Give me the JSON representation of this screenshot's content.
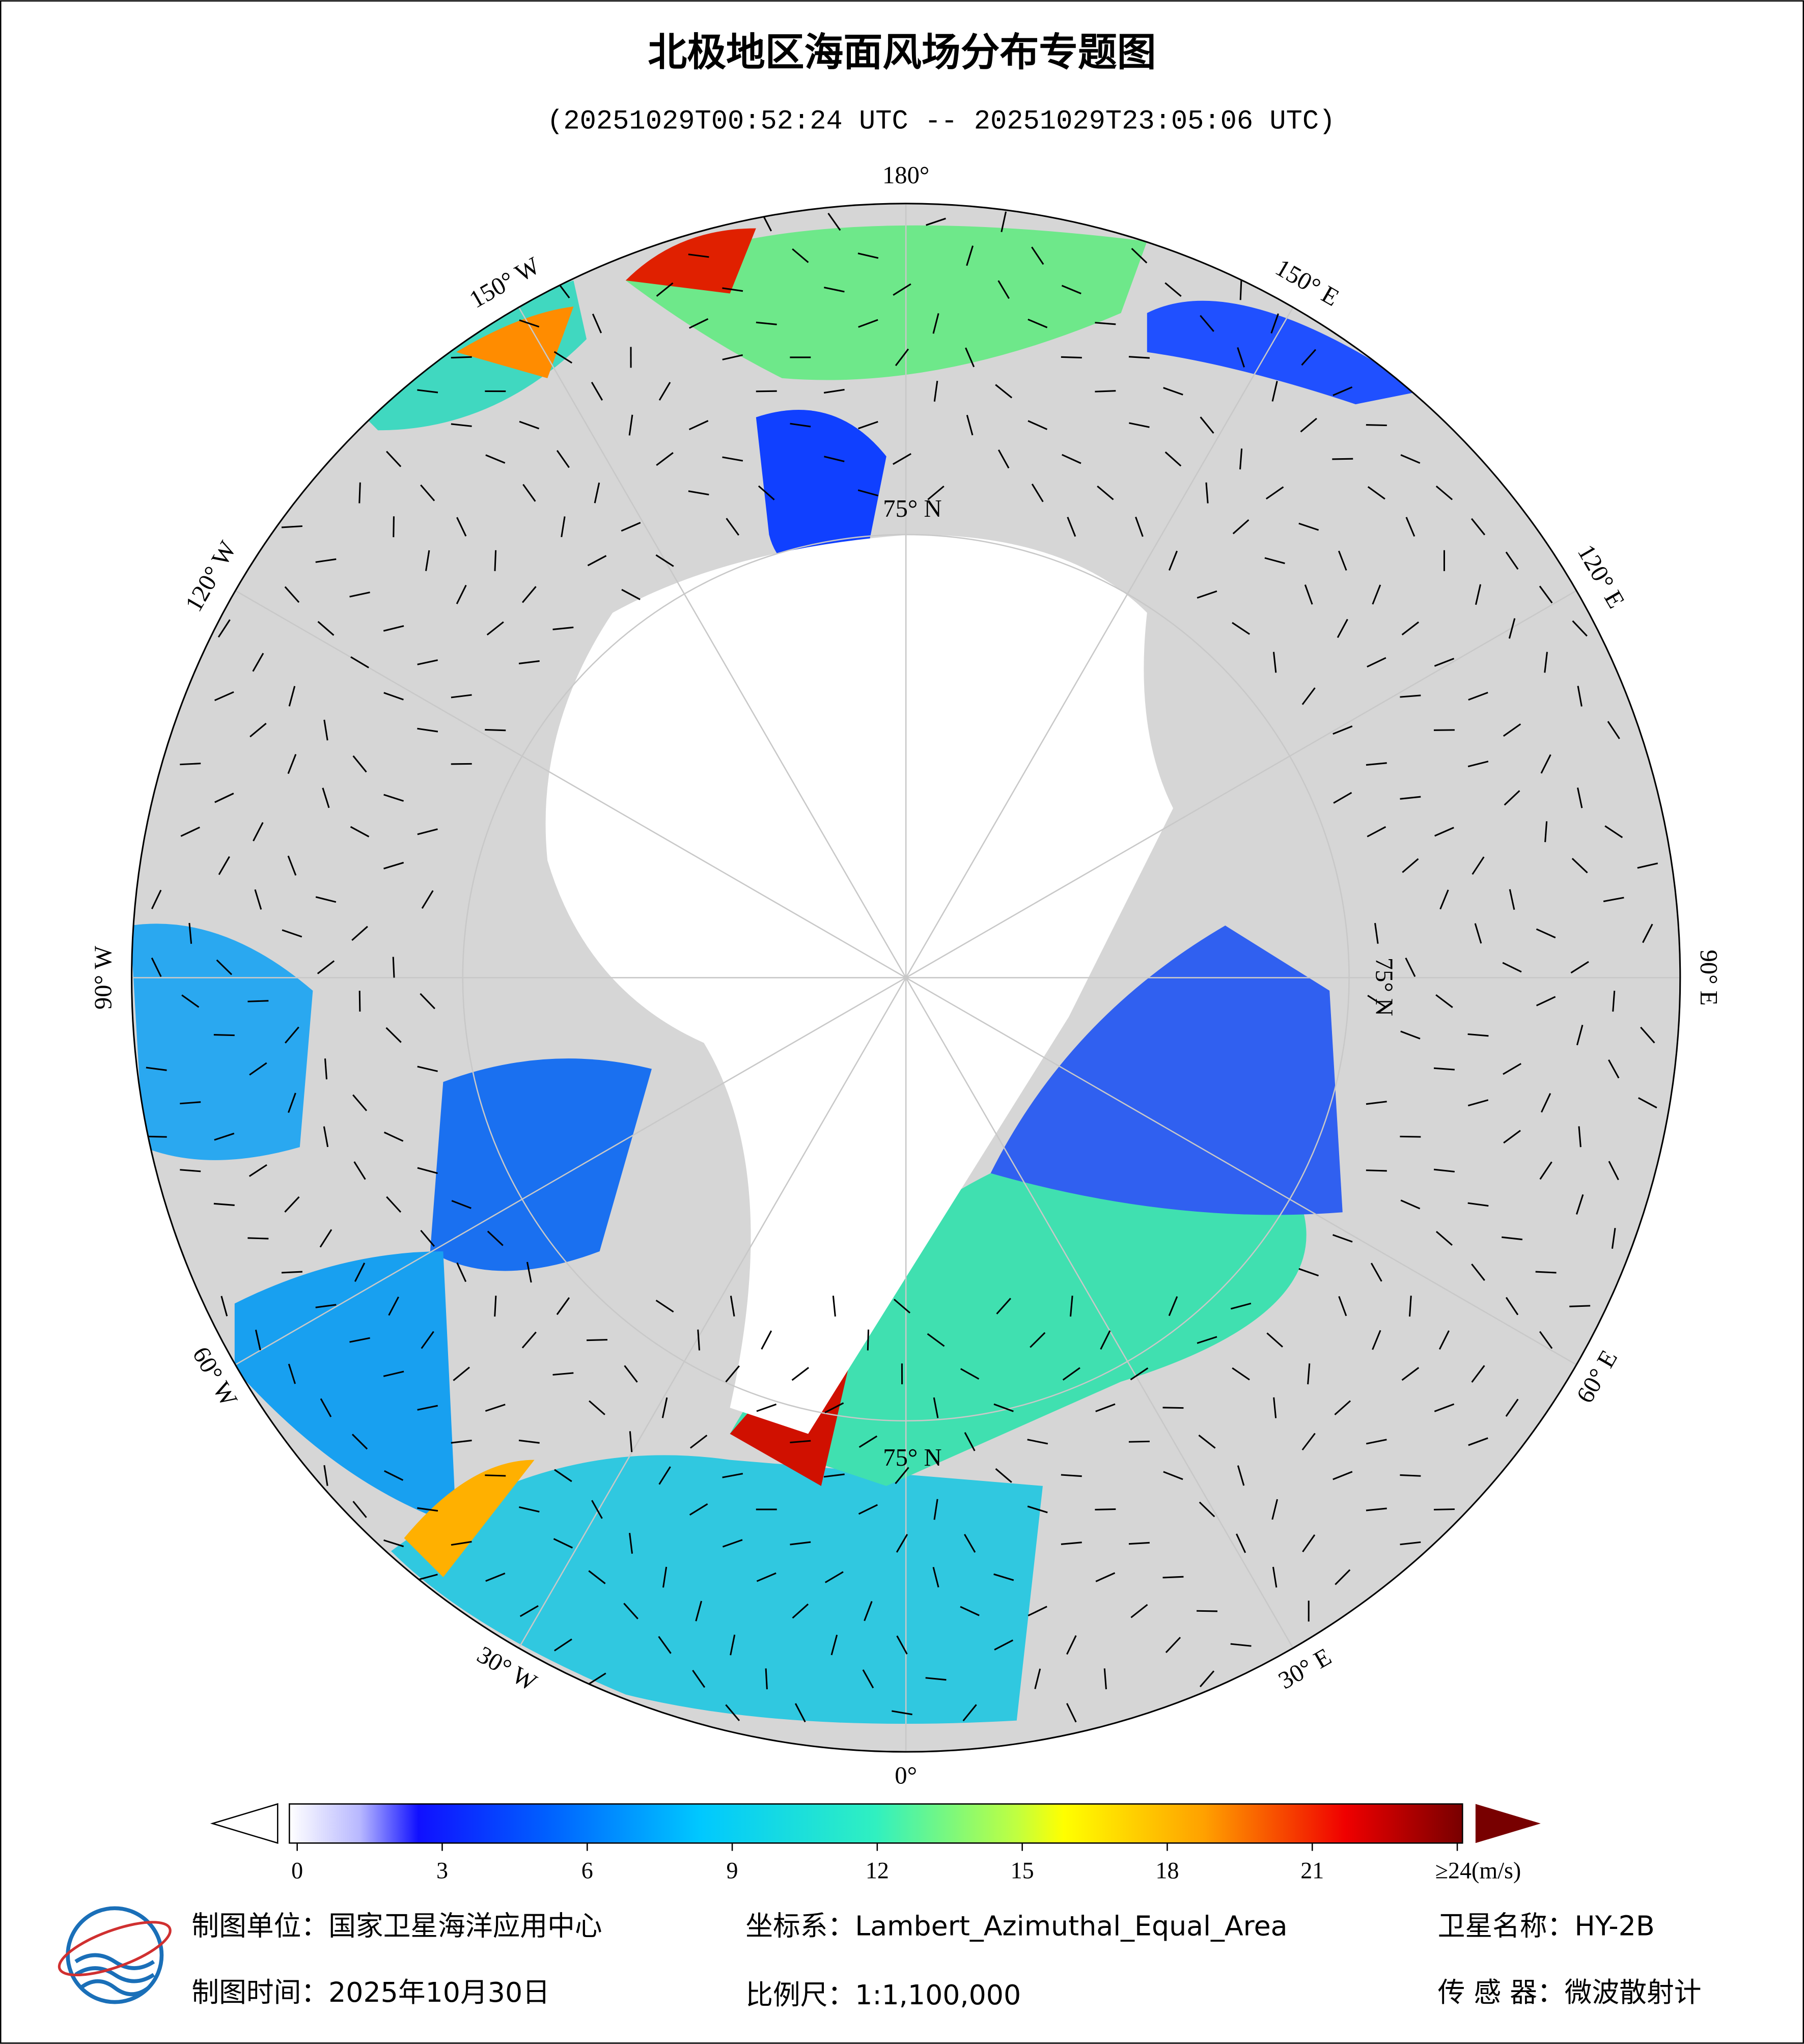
{
  "header": {
    "title": "北极地区海面风场分布专题图",
    "subtitle": "(20251029T00:52:24 UTC -- 20251029T23:05:06 UTC)"
  },
  "map": {
    "meridian_labels": [
      "180°",
      "150° E",
      "120° E",
      "90° E",
      "60° E",
      "30° E",
      "0°",
      "30° W",
      "60° W",
      "90° W",
      "120° W",
      "150° W"
    ],
    "parallel_labels": [
      "75° N",
      "75° N",
      "75° N"
    ]
  },
  "colorbar": {
    "lim": [
      0,
      24
    ],
    "ticks": [
      0,
      3,
      6,
      9,
      12,
      15,
      18,
      21,
      {
        "value": 24,
        "label": "≥24(m/s)"
      }
    ]
  },
  "footer": {
    "unit": "制图单位：国家卫星海洋应用中心",
    "crs": "坐标系：Lambert_Azimuthal_Equal_Area",
    "satellite": "卫星名称：HY-2B",
    "date": "制图时间：2025年10月30日",
    "scale": "比例尺：1:1,100,000",
    "sensor": "传 感 器：微波散射计"
  }
}
